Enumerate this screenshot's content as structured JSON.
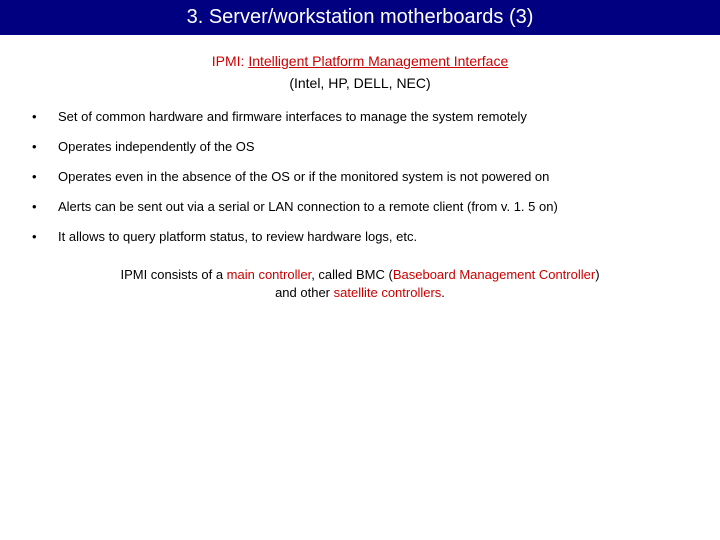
{
  "title": "3. Server/workstation motherboards (3)",
  "subtitle_prefix": "IPMI: ",
  "subtitle_main": "Intelligent Platform Management Interface",
  "vendors": "(Intel, HP, DELL, NEC)",
  "bullets": [
    "Set of common hardware and firmware interfaces to manage the system remotely",
    "Operates independently of the OS",
    "Operates even in the absence of the OS or if the monitored system is not powered on",
    "Alerts can be sent out via a serial or LAN connection to a remote client (from v. 1. 5 on)",
    "It allows to query platform status, to review hardware logs, etc."
  ],
  "para_1": "IPMI consists of a ",
  "para_2": "main controller",
  "para_3": ", called BMC (",
  "para_4": "Baseboard Management Controller",
  "para_5": ")",
  "para_6": "and other ",
  "para_7": "satellite controllers",
  "para_8": ".",
  "colors": {
    "title_bg": "#000080",
    "title_fg": "#ffffff",
    "accent_red": "#cc0000",
    "text": "#000000",
    "background": "#ffffff"
  },
  "typography": {
    "title_fontsize": 20,
    "subtitle_fontsize": 14,
    "body_fontsize": 13
  }
}
